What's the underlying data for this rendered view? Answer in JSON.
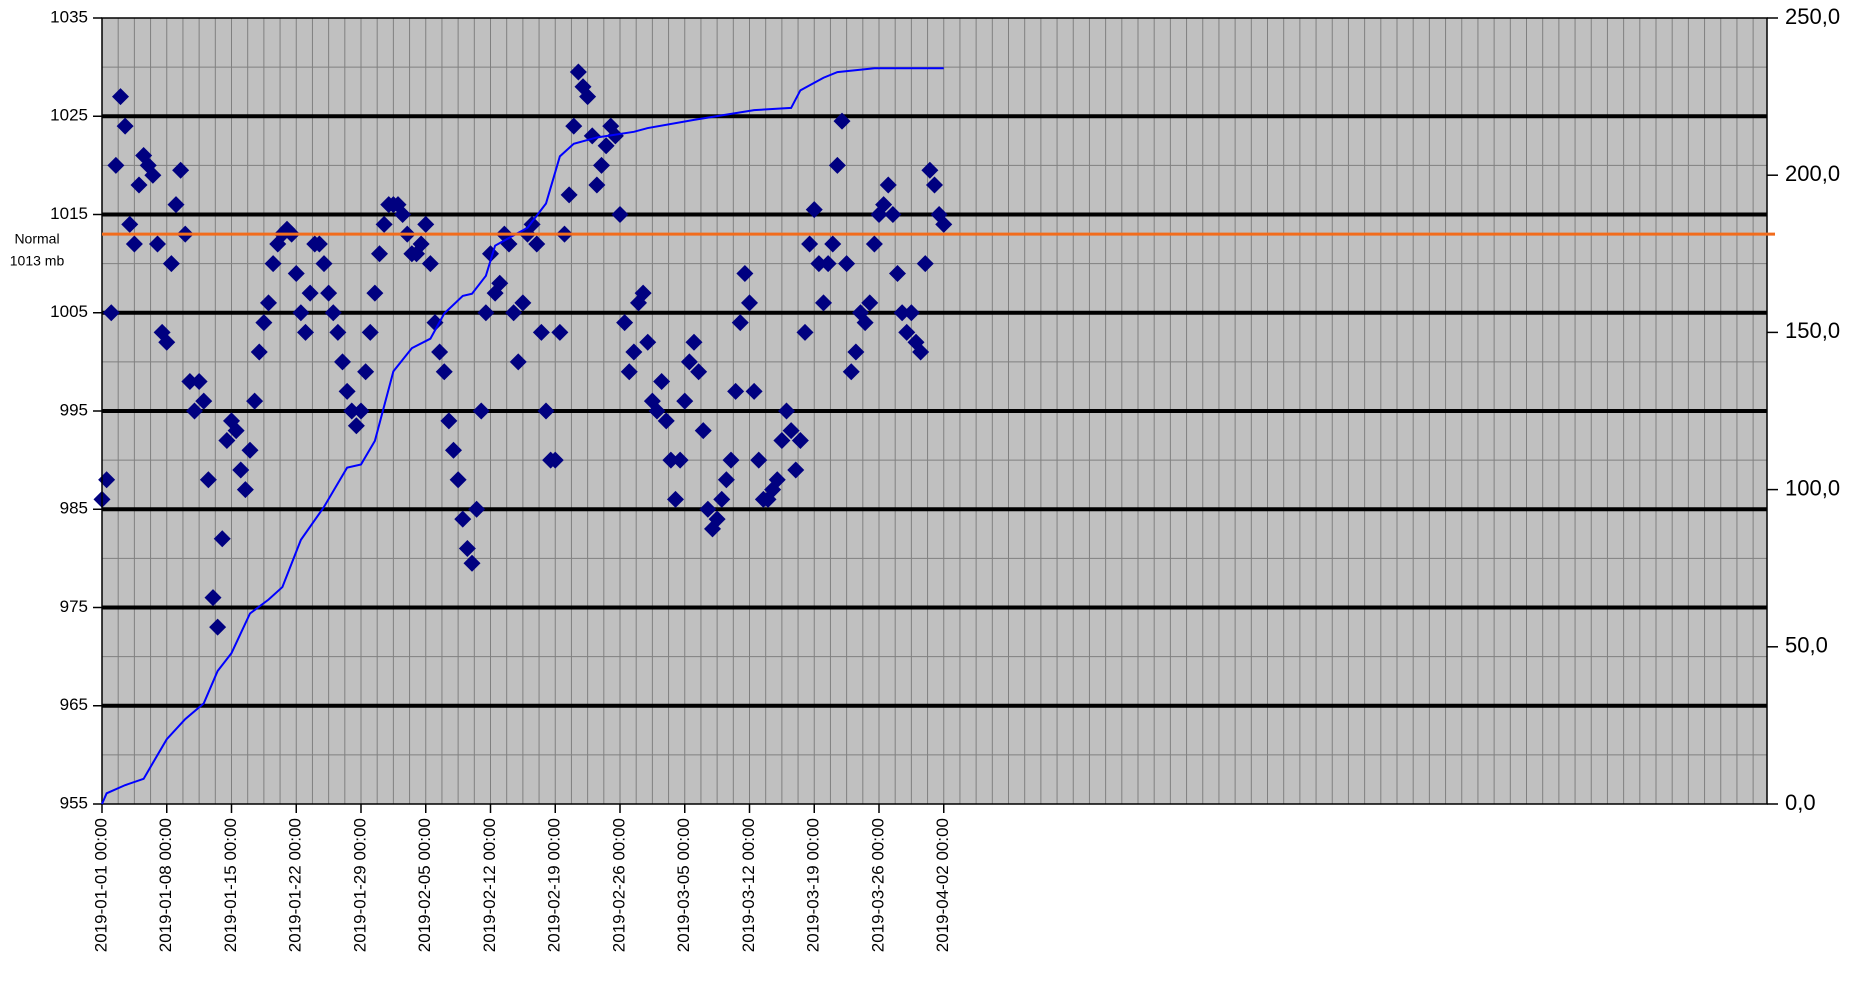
{
  "chart_data": {
    "type": "scatter",
    "grid": true,
    "xlim": [
      "2019-01-01 00:00",
      "2019-06-30 00:00"
    ],
    "xticks": [
      "2019-01-01 00:00",
      "2019-01-08 00:00",
      "2019-01-15 00:00",
      "2019-01-22 00:00",
      "2019-01-29 00:00",
      "2019-02-05 00:00",
      "2019-02-12 00:00",
      "2019-02-19 00:00",
      "2019-02-26 00:00",
      "2019-03-05 00:00",
      "2019-03-12 00:00",
      "2019-03-19 00:00",
      "2019-03-26 00:00",
      "2019-04-02 00:00"
    ],
    "ylim": [
      955,
      1035
    ],
    "yticks": [
      955,
      965,
      975,
      985,
      995,
      1005,
      1015,
      1025,
      1035
    ],
    "y2lim": [
      0,
      250
    ],
    "y2ticks": [
      {
        "value": 0,
        "label": "0,0"
      },
      {
        "value": 50,
        "label": "50,0"
      },
      {
        "value": 100,
        "label": "100,0"
      },
      {
        "value": 150,
        "label": "150,0"
      },
      {
        "value": 200,
        "label": "200,0"
      },
      {
        "value": 250,
        "label": "250,0"
      }
    ],
    "reference_line": {
      "value": 1013,
      "label": [
        "Normal",
        "1013 mb"
      ],
      "color": "#f26c1c"
    },
    "series": [
      {
        "type": "scatter",
        "marker": "diamond",
        "color": "#000080",
        "x": [
          "2019-01-01 00:00",
          "2019-01-01 12:00",
          "2019-01-02 00:00",
          "2019-01-02 12:00",
          "2019-01-03 00:00",
          "2019-01-03 12:00",
          "2019-01-04 00:00",
          "2019-01-04 12:00",
          "2019-01-05 00:00",
          "2019-01-05 12:00",
          "2019-01-06 00:00",
          "2019-01-06 12:00",
          "2019-01-07 00:00",
          "2019-01-07 12:00",
          "2019-01-08 00:00",
          "2019-01-08 12:00",
          "2019-01-09 00:00",
          "2019-01-09 12:00",
          "2019-01-10 00:00",
          "2019-01-10 12:00",
          "2019-01-11 00:00",
          "2019-01-11 12:00",
          "2019-01-12 00:00",
          "2019-01-12 12:00",
          "2019-01-13 00:00",
          "2019-01-13 12:00",
          "2019-01-14 00:00",
          "2019-01-14 12:00",
          "2019-01-15 00:00",
          "2019-01-15 12:00",
          "2019-01-16 00:00",
          "2019-01-16 12:00",
          "2019-01-17 00:00",
          "2019-01-17 12:00",
          "2019-01-18 00:00",
          "2019-01-18 12:00",
          "2019-01-19 00:00",
          "2019-01-19 12:00",
          "2019-01-20 00:00",
          "2019-01-20 12:00",
          "2019-01-21 00:00",
          "2019-01-21 12:00",
          "2019-01-22 00:00",
          "2019-01-22 12:00",
          "2019-01-23 00:00",
          "2019-01-23 12:00",
          "2019-01-24 00:00",
          "2019-01-24 12:00",
          "2019-01-25 00:00",
          "2019-01-25 12:00",
          "2019-01-26 00:00",
          "2019-01-26 12:00",
          "2019-01-27 00:00",
          "2019-01-27 12:00",
          "2019-01-28 00:00",
          "2019-01-28 12:00",
          "2019-01-29 00:00",
          "2019-01-29 12:00",
          "2019-01-30 00:00",
          "2019-01-30 12:00",
          "2019-01-31 00:00",
          "2019-01-31 12:00",
          "2019-02-01 00:00",
          "2019-02-01 12:00",
          "2019-02-02 00:00",
          "2019-02-02 12:00",
          "2019-02-03 00:00",
          "2019-02-03 12:00",
          "2019-02-04 00:00",
          "2019-02-04 12:00",
          "2019-02-05 00:00",
          "2019-02-05 12:00",
          "2019-02-06 00:00",
          "2019-02-06 12:00",
          "2019-02-07 00:00",
          "2019-02-07 12:00",
          "2019-02-08 00:00",
          "2019-02-08 12:00",
          "2019-02-09 00:00",
          "2019-02-09 12:00",
          "2019-02-10 00:00",
          "2019-02-10 12:00",
          "2019-02-11 00:00",
          "2019-02-11 12:00",
          "2019-02-12 00:00",
          "2019-02-12 12:00",
          "2019-02-13 00:00",
          "2019-02-13 12:00",
          "2019-02-14 00:00",
          "2019-02-14 12:00",
          "2019-02-15 00:00",
          "2019-02-15 12:00",
          "2019-02-16 00:00",
          "2019-02-16 12:00",
          "2019-02-17 00:00",
          "2019-02-17 12:00",
          "2019-02-18 00:00",
          "2019-02-18 12:00",
          "2019-02-19 00:00",
          "2019-02-19 12:00",
          "2019-02-20 00:00",
          "2019-02-20 12:00",
          "2019-02-21 00:00",
          "2019-02-21 12:00",
          "2019-02-22 00:00",
          "2019-02-22 12:00",
          "2019-02-23 00:00",
          "2019-02-23 12:00",
          "2019-02-24 00:00",
          "2019-02-24 12:00",
          "2019-02-25 00:00",
          "2019-02-25 12:00",
          "2019-02-26 00:00",
          "2019-02-26 12:00",
          "2019-02-27 00:00",
          "2019-02-27 12:00",
          "2019-02-28 00:00",
          "2019-02-28 12:00",
          "2019-03-01 00:00",
          "2019-03-01 12:00",
          "2019-03-02 00:00",
          "2019-03-02 12:00",
          "2019-03-03 00:00",
          "2019-03-03 12:00",
          "2019-03-04 00:00",
          "2019-03-04 12:00",
          "2019-03-05 00:00",
          "2019-03-05 12:00",
          "2019-03-06 00:00",
          "2019-03-06 12:00",
          "2019-03-07 00:00",
          "2019-03-07 12:00",
          "2019-03-08 00:00",
          "2019-03-08 12:00",
          "2019-03-09 00:00",
          "2019-03-09 12:00",
          "2019-03-10 00:00",
          "2019-03-10 12:00",
          "2019-03-11 00:00",
          "2019-03-11 12:00",
          "2019-03-12 00:00",
          "2019-03-12 12:00",
          "2019-03-13 00:00",
          "2019-03-13 12:00",
          "2019-03-14 00:00",
          "2019-03-14 12:00",
          "2019-03-15 00:00",
          "2019-03-15 12:00",
          "2019-03-16 00:00",
          "2019-03-16 12:00",
          "2019-03-17 00:00",
          "2019-03-17 12:00",
          "2019-03-18 00:00",
          "2019-03-18 12:00",
          "2019-03-19 00:00",
          "2019-03-19 12:00",
          "2019-03-20 00:00",
          "2019-03-20 12:00",
          "2019-03-21 00:00",
          "2019-03-21 12:00",
          "2019-03-22 00:00",
          "2019-03-22 12:00",
          "2019-03-23 00:00",
          "2019-03-23 12:00",
          "2019-03-24 00:00",
          "2019-03-24 12:00",
          "2019-03-25 00:00",
          "2019-03-25 12:00",
          "2019-03-26 00:00",
          "2019-03-26 12:00",
          "2019-03-27 00:00",
          "2019-03-27 12:00",
          "2019-03-28 00:00",
          "2019-03-28 12:00",
          "2019-03-29 00:00",
          "2019-03-29 12:00",
          "2019-03-30 00:00",
          "2019-03-30 12:00",
          "2019-03-31 00:00",
          "2019-03-31 12:00",
          "2019-04-01 00:00",
          "2019-04-01 12:00",
          "2019-04-02 00:00"
        ],
        "values": [
          986,
          988,
          1005,
          1020,
          1027,
          1024,
          1014,
          1012,
          1018,
          1021,
          1020,
          1019,
          1012,
          1003,
          1002,
          1010,
          1016,
          1019.5,
          1013,
          998,
          995,
          998,
          996,
          988,
          976,
          973,
          982,
          992,
          994,
          993,
          989,
          987,
          991,
          996,
          1001,
          1004,
          1006,
          1010,
          1012,
          1013,
          1013.5,
          1013,
          1009,
          1005,
          1003,
          1007,
          1012,
          1012,
          1010,
          1007,
          1005,
          1003,
          1000,
          997,
          995,
          993.5,
          995,
          999,
          1003,
          1007,
          1011,
          1014,
          1016,
          1016,
          1016,
          1015,
          1013,
          1011,
          1011,
          1012,
          1014,
          1010,
          1004,
          1001,
          999,
          994,
          991,
          988,
          984,
          981,
          979.5,
          985,
          995,
          1005,
          1011,
          1007,
          1008,
          1013,
          1012,
          1005,
          1000,
          1006,
          1013,
          1014,
          1012,
          1003,
          995,
          990,
          990,
          1003,
          1013,
          1017,
          1024,
          1029.5,
          1028,
          1027,
          1023,
          1018,
          1020,
          1022,
          1024,
          1023,
          1015,
          1004,
          999,
          1001,
          1006,
          1007,
          1002,
          996,
          995,
          998,
          994,
          990,
          986,
          990,
          996,
          1000,
          1002,
          999,
          993,
          985,
          983,
          984,
          986,
          988,
          990,
          997,
          1004,
          1009,
          1006,
          997,
          990,
          986,
          986,
          987,
          988,
          992,
          995,
          993,
          989,
          992,
          1003,
          1012,
          1015.5,
          1010,
          1006,
          1010,
          1012,
          1020,
          1024.5,
          1010,
          999,
          1001,
          1005,
          1004,
          1006,
          1012,
          1015,
          1016,
          1018,
          1015,
          1009,
          1005,
          1003,
          1005,
          1002,
          1001,
          1010,
          1019.5,
          1018,
          1015,
          1014
        ]
      },
      {
        "type": "line",
        "axis": "y2",
        "color": "#0000ff",
        "x": [
          "2019-01-01 00:00",
          "2019-01-01 12:00",
          "2019-01-03 12:00",
          "2019-01-05 12:00",
          "2019-01-07 00:00",
          "2019-01-08 00:00",
          "2019-01-10 00:00",
          "2019-01-12 00:00",
          "2019-01-13 12:00",
          "2019-01-15 00:00",
          "2019-01-17 00:00",
          "2019-01-19 00:00",
          "2019-01-20 12:00",
          "2019-01-22 12:00",
          "2019-01-25 00:00",
          "2019-01-27 12:00",
          "2019-01-29 00:00",
          "2019-01-30 12:00",
          "2019-02-01 12:00",
          "2019-02-03 12:00",
          "2019-02-05 12:00",
          "2019-02-07 00:00",
          "2019-02-09 00:00",
          "2019-02-10 00:00",
          "2019-02-11 12:00",
          "2019-02-12 12:00",
          "2019-02-16 00:00",
          "2019-02-18 00:00",
          "2019-02-19 12:00",
          "2019-02-21 00:00",
          "2019-02-23 12:00",
          "2019-02-27 12:00",
          "2019-03-01 00:00",
          "2019-03-06 00:00",
          "2019-03-12 12:00",
          "2019-03-16 12:00",
          "2019-03-17 12:00",
          "2019-03-20 00:00",
          "2019-03-21 12:00",
          "2019-03-25 12:00",
          "2019-04-02 00:00"
        ],
        "values": [
          0,
          3.4,
          6,
          8,
          15.6,
          20.6,
          27,
          32,
          42.3,
          48,
          60.6,
          65,
          69,
          84,
          94.5,
          107,
          108,
          115.5,
          137.6,
          145,
          148,
          156,
          161.6,
          162.3,
          168,
          177.6,
          183.3,
          191,
          206,
          210,
          212,
          213.8,
          215,
          217.6,
          220.7,
          221.4,
          227,
          231,
          232.8,
          234,
          234
        ]
      }
    ]
  }
}
